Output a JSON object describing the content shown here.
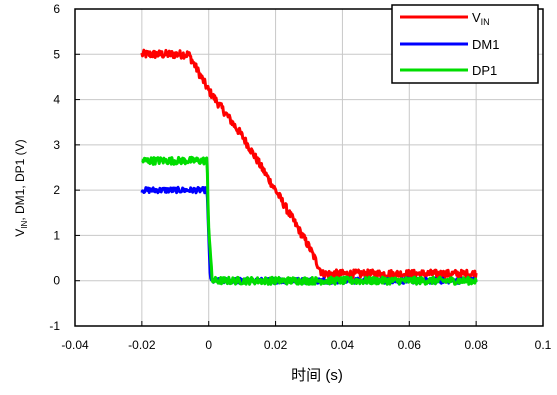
{
  "chart_data": {
    "type": "line",
    "title": "",
    "xlabel": "时间 (s)",
    "ylabel_parts": {
      "pre": "V",
      "sub": "IN",
      "post": ", DM1, DP1 (V)"
    },
    "xlim": [
      -0.04,
      0.1
    ],
    "ylim": [
      -1,
      6
    ],
    "x_ticks": [
      -0.04,
      -0.02,
      0,
      0.02,
      0.04,
      0.06,
      0.08,
      0.1
    ],
    "x_tick_labels": [
      "-0.04",
      "-0.02",
      "0",
      "0.02",
      "0.04",
      "0.06",
      "0.08",
      "0.1"
    ],
    "y_ticks": [
      -1,
      0,
      1,
      2,
      3,
      4,
      5,
      6
    ],
    "y_tick_labels": [
      "-1",
      "0",
      "1",
      "2",
      "3",
      "4",
      "5",
      "6"
    ],
    "grid": true,
    "legend_position": "top-right",
    "series": [
      {
        "name": "VIN",
        "legend": {
          "main": "V",
          "sub": "IN"
        },
        "color": "#ff0000",
        "x": [
          -0.02,
          -0.006,
          0,
          0.01,
          0.02,
          0.03,
          0.034,
          0.04,
          0.08
        ],
        "y": [
          5.0,
          5.0,
          4.2,
          3.2,
          2.0,
          0.75,
          0.15,
          0.15,
          0.15
        ]
      },
      {
        "name": "DM1",
        "color": "#0000ff",
        "x": [
          -0.02,
          -0.0005,
          0.0,
          0.0005,
          0.08
        ],
        "y": [
          2.0,
          2.0,
          1.0,
          0.0,
          0.0
        ]
      },
      {
        "name": "DP1",
        "color": "#00dd00",
        "x": [
          -0.02,
          -0.0005,
          0.0,
          0.001,
          0.08
        ],
        "y": [
          2.65,
          2.65,
          1.2,
          0.0,
          0.0
        ]
      }
    ]
  }
}
